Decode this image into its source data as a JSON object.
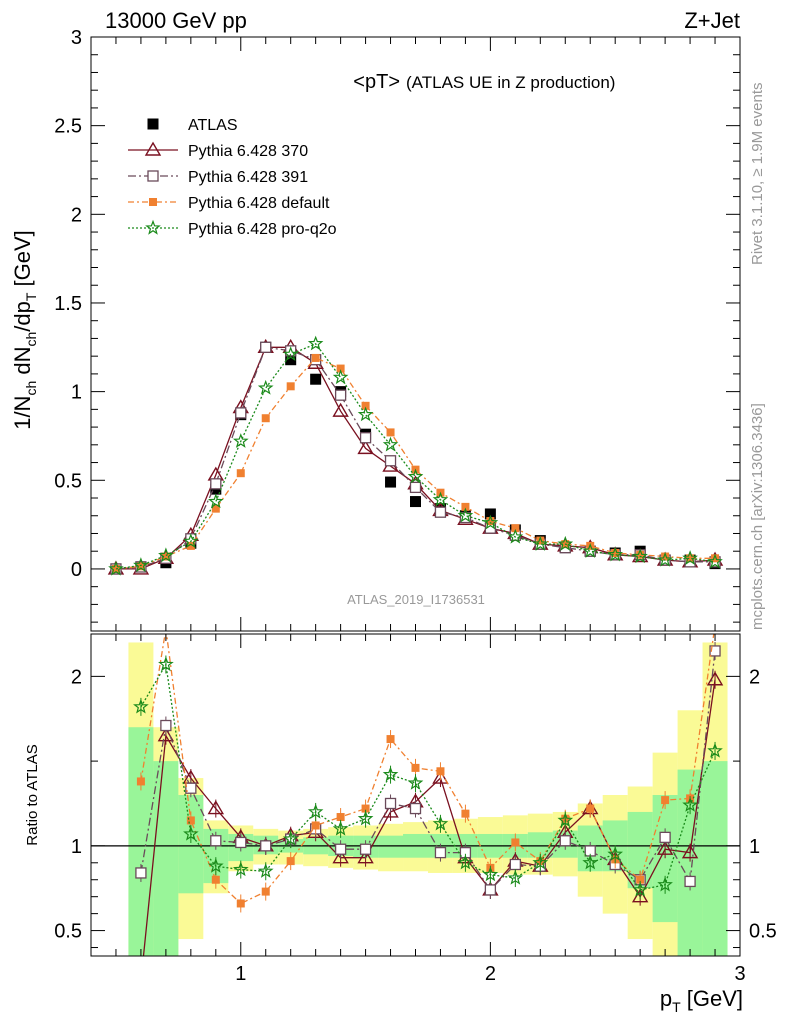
{
  "header": {
    "left": "13000 GeV pp",
    "right": "Z+Jet"
  },
  "title": {
    "main": "<pT>",
    "sub": "(ATLAS UE in Z production)"
  },
  "side_labels": {
    "rivet": "Rivet 3.1.10, ≥ 1.9M events",
    "mcplots": "mcplots.cern.ch [arXiv:1306.3436]"
  },
  "watermark": "ATLAS_2019_I1736531",
  "colors": {
    "atlas": "#000000",
    "p370": "#7a1020",
    "p391": "#6a4a5a",
    "pdef": "#f08030",
    "pq2o": "#1a8a1a",
    "band_green": "#99f599",
    "band_yellow": "#fafa96"
  },
  "chart_data": [
    {
      "type": "scatter",
      "xlabel_text": "p",
      "xlabel_sub": "T",
      "xlabel_unit": "[GeV]",
      "ylabel": "1/N_ch dN_ch/dp_T [GeV]",
      "xlim": [
        0.4,
        3.0
      ],
      "ylim": [
        -0.35,
        3.0
      ],
      "xticks": [
        "1",
        "2",
        "3"
      ],
      "yticks": [
        "0",
        "0.5",
        "1",
        "1.5",
        "2",
        "2.5",
        "3"
      ],
      "legend_position": "top-left",
      "x": [
        0.5,
        0.6,
        0.7,
        0.8,
        0.9,
        1.0,
        1.1,
        1.2,
        1.3,
        1.4,
        1.5,
        1.6,
        1.7,
        1.8,
        1.9,
        2.0,
        2.1,
        2.2,
        2.3,
        2.4,
        2.5,
        2.6,
        2.7,
        2.8,
        2.9
      ],
      "series": [
        {
          "name": "ATLAS",
          "key": "atlas",
          "marker": "square-filled",
          "values": [
            0.0,
            0.012,
            0.035,
            0.145,
            0.45,
            0.87,
            1.25,
            1.18,
            1.07,
            1.0,
            0.76,
            0.49,
            0.38,
            0.34,
            0.3,
            0.31,
            0.22,
            0.16,
            0.12,
            0.1,
            0.09,
            0.1,
            0.05,
            0.05,
            0.03
          ]
        },
        {
          "name": "Pythia 6.428 370",
          "key": "p370",
          "marker": "triangle-open",
          "values": [
            0.0,
            0.0,
            0.06,
            0.19,
            0.53,
            0.91,
            1.25,
            1.25,
            1.16,
            0.89,
            0.68,
            0.58,
            0.48,
            0.33,
            0.28,
            0.23,
            0.2,
            0.14,
            0.13,
            0.12,
            0.08,
            0.07,
            0.05,
            0.04,
            0.05
          ]
        },
        {
          "name": "Pythia 6.428 391",
          "key": "p391",
          "marker": "square-open",
          "values": [
            0.0,
            0.011,
            0.06,
            0.17,
            0.48,
            0.88,
            1.25,
            1.23,
            1.18,
            0.98,
            0.74,
            0.61,
            0.46,
            0.32,
            0.29,
            0.23,
            0.19,
            0.14,
            0.12,
            0.1,
            0.08,
            0.08,
            0.05,
            0.04,
            0.04
          ]
        },
        {
          "name": "Pythia 6.428 default",
          "key": "pdef",
          "marker": "square-filled-small",
          "values": [
            0.0,
            0.015,
            0.07,
            0.13,
            0.34,
            0.54,
            0.85,
            1.03,
            1.19,
            1.13,
            0.92,
            0.77,
            0.56,
            0.43,
            0.35,
            0.27,
            0.23,
            0.16,
            0.14,
            0.13,
            0.09,
            0.08,
            0.07,
            0.06,
            0.06
          ]
        },
        {
          "name": "Pythia 6.428 pro-q2o",
          "key": "pq2o",
          "marker": "star",
          "values": [
            0.0,
            0.02,
            0.075,
            0.155,
            0.38,
            0.72,
            1.02,
            1.21,
            1.27,
            1.08,
            0.87,
            0.7,
            0.52,
            0.39,
            0.3,
            0.26,
            0.18,
            0.14,
            0.14,
            0.1,
            0.08,
            0.07,
            0.05,
            0.06,
            0.04
          ]
        }
      ]
    },
    {
      "type": "line",
      "ylabel": "Ratio to ATLAS",
      "xlim": [
        0.4,
        3.0
      ],
      "ylim": [
        0.35,
        2.25
      ],
      "yticks": [
        "0.5",
        "1",
        "2"
      ],
      "reference_line": 1,
      "x": [
        0.6,
        0.7,
        0.8,
        0.9,
        1.0,
        1.1,
        1.2,
        1.3,
        1.4,
        1.5,
        1.6,
        1.7,
        1.8,
        1.9,
        2.0,
        2.1,
        2.2,
        2.3,
        2.4,
        2.5,
        2.6,
        2.7,
        2.8,
        2.9
      ],
      "bands": {
        "bin_edges": [
          0.55,
          0.65,
          0.75,
          0.85,
          0.95,
          1.05,
          1.15,
          1.25,
          1.35,
          1.45,
          1.55,
          1.65,
          1.75,
          1.85,
          1.95,
          2.05,
          2.15,
          2.25,
          2.35,
          2.45,
          2.55,
          2.65,
          2.75,
          2.85,
          2.95
        ],
        "green": [
          [
            0.35,
            1.7
          ],
          [
            0.35,
            1.5
          ],
          [
            0.72,
            1.3
          ],
          [
            0.78,
            1.1
          ],
          [
            0.91,
            1.07
          ],
          [
            0.95,
            1.06
          ],
          [
            0.96,
            1.04
          ],
          [
            0.95,
            1.05
          ],
          [
            0.94,
            1.06
          ],
          [
            0.93,
            1.06
          ],
          [
            0.93,
            1.06
          ],
          [
            0.93,
            1.07
          ],
          [
            0.93,
            1.07
          ],
          [
            0.93,
            1.07
          ],
          [
            0.93,
            1.07
          ],
          [
            0.93,
            1.07
          ],
          [
            0.93,
            1.08
          ],
          [
            0.93,
            1.09
          ],
          [
            0.85,
            1.12
          ],
          [
            0.85,
            1.15
          ],
          [
            0.75,
            1.2
          ],
          [
            0.55,
            1.3
          ],
          [
            0.35,
            1.45
          ],
          [
            0.35,
            1.5
          ]
        ],
        "yellow": [
          [
            0.35,
            2.2
          ],
          [
            0.35,
            1.7
          ],
          [
            0.45,
            1.4
          ],
          [
            0.72,
            1.15
          ],
          [
            0.85,
            1.12
          ],
          [
            0.89,
            1.1
          ],
          [
            0.89,
            1.09
          ],
          [
            0.88,
            1.1
          ],
          [
            0.87,
            1.11
          ],
          [
            0.86,
            1.12
          ],
          [
            0.85,
            1.13
          ],
          [
            0.85,
            1.14
          ],
          [
            0.84,
            1.15
          ],
          [
            0.84,
            1.16
          ],
          [
            0.84,
            1.17
          ],
          [
            0.83,
            1.18
          ],
          [
            0.83,
            1.19
          ],
          [
            0.82,
            1.2
          ],
          [
            0.7,
            1.25
          ],
          [
            0.6,
            1.3
          ],
          [
            0.45,
            1.35
          ],
          [
            0.35,
            1.55
          ],
          [
            0.35,
            1.8
          ],
          [
            0.35,
            2.2
          ]
        ]
      },
      "series": [
        {
          "name": "Pythia 6.428 370",
          "key": "p370",
          "marker": "triangle-open",
          "values": [
            0.2,
            1.65,
            1.4,
            1.22,
            1.05,
            1.0,
            1.06,
            1.08,
            0.93,
            0.93,
            1.2,
            1.26,
            1.4,
            0.93,
            0.74,
            0.91,
            0.88,
            1.08,
            1.22,
            0.92,
            0.7,
            0.98,
            0.96,
            1.98
          ]
        },
        {
          "name": "Pythia 6.428 391",
          "key": "p391",
          "marker": "square-open",
          "values": [
            0.84,
            1.71,
            1.34,
            1.03,
            1.02,
            1.0,
            1.04,
            1.1,
            0.98,
            0.98,
            1.25,
            1.22,
            0.96,
            0.96,
            0.74,
            0.89,
            0.88,
            1.03,
            0.97,
            0.89,
            0.8,
            1.05,
            0.79,
            2.15
          ]
        },
        {
          "name": "Pythia 6.428 default",
          "key": "pdef",
          "marker": "square-filled-small",
          "values": [
            1.38,
            2.28,
            1.15,
            0.8,
            0.66,
            0.73,
            0.91,
            1.12,
            1.17,
            1.22,
            1.63,
            1.46,
            1.44,
            1.19,
            0.87,
            1.02,
            0.91,
            1.16,
            1.22,
            0.92,
            0.8,
            1.27,
            1.28,
            2.3
          ]
        },
        {
          "name": "Pythia 6.428 pro-q2o",
          "key": "pq2o",
          "marker": "star",
          "values": [
            1.82,
            2.07,
            1.07,
            0.88,
            0.86,
            0.85,
            1.04,
            1.2,
            1.1,
            1.16,
            1.42,
            1.37,
            1.13,
            0.9,
            0.83,
            0.81,
            0.9,
            1.15,
            0.9,
            0.95,
            0.74,
            0.77,
            1.24,
            1.56
          ]
        }
      ]
    }
  ]
}
